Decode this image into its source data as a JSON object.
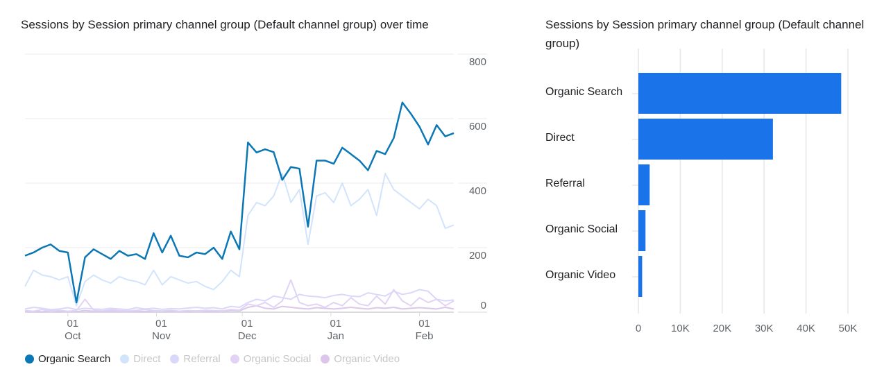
{
  "chart_data": [
    {
      "type": "line",
      "title": "Sessions by Session primary channel group (Default channel group) over time",
      "ylim": [
        0,
        800
      ],
      "y_ticks": [
        "0",
        "200",
        "400",
        "600",
        "800"
      ],
      "x_ticks": [
        {
          "day": "01",
          "month": "Oct",
          "date": "Oct 1"
        },
        {
          "day": "01",
          "month": "Nov",
          "date": "Nov 1"
        },
        {
          "day": "01",
          "month": "Dec",
          "date": "Dec 1"
        },
        {
          "day": "01",
          "month": "Jan",
          "date": "Jan 1"
        },
        {
          "day": "01",
          "month": "Feb",
          "date": "Feb 1"
        }
      ],
      "x_range": [
        "Sep 16",
        "Feb 13"
      ],
      "grid": true,
      "legend_position": "bottom",
      "x": [
        "Sep 16",
        "Sep 19",
        "Sep 22",
        "Sep 25",
        "Sep 28",
        "Oct 1",
        "Oct 4",
        "Oct 7",
        "Oct 10",
        "Oct 13",
        "Oct 16",
        "Oct 19",
        "Oct 22",
        "Oct 25",
        "Oct 28",
        "Oct 31",
        "Nov 3",
        "Nov 6",
        "Nov 9",
        "Nov 12",
        "Nov 15",
        "Nov 18",
        "Nov 21",
        "Nov 24",
        "Nov 27",
        "Nov 30",
        "Dec 3",
        "Dec 6",
        "Dec 9",
        "Dec 12",
        "Dec 15",
        "Dec 18",
        "Dec 21",
        "Dec 24",
        "Dec 27",
        "Dec 30",
        "Jan 2",
        "Jan 5",
        "Jan 8",
        "Jan 11",
        "Jan 14",
        "Jan 17",
        "Jan 20",
        "Jan 23",
        "Jan 26",
        "Jan 29",
        "Feb 1",
        "Feb 4",
        "Feb 7",
        "Feb 10",
        "Feb 13"
      ],
      "series": [
        {
          "name": "Organic Search",
          "color": "#0b77b5",
          "active": true,
          "values": [
            175,
            185,
            200,
            210,
            190,
            185,
            30,
            170,
            195,
            180,
            165,
            190,
            175,
            180,
            165,
            245,
            185,
            237,
            175,
            170,
            185,
            180,
            200,
            165,
            250,
            195,
            526,
            495,
            505,
            496,
            410,
            450,
            445,
            265,
            470,
            470,
            460,
            510,
            490,
            470,
            440,
            500,
            490,
            540,
            650,
            615,
            575,
            520,
            580,
            545,
            555
          ]
        },
        {
          "name": "Direct",
          "color": "#d2e3fc",
          "active": false,
          "values": [
            80,
            130,
            115,
            110,
            100,
            110,
            20,
            95,
            115,
            100,
            90,
            110,
            100,
            95,
            85,
            130,
            85,
            110,
            100,
            90,
            95,
            80,
            70,
            95,
            130,
            110,
            300,
            340,
            330,
            360,
            430,
            340,
            380,
            210,
            360,
            370,
            340,
            400,
            330,
            350,
            380,
            300,
            430,
            380,
            360,
            340,
            320,
            350,
            330,
            260,
            270
          ]
        },
        {
          "name": "Referral",
          "color": "#d9d8fb",
          "active": false,
          "values": [
            10,
            15,
            12,
            8,
            10,
            14,
            8,
            12,
            10,
            9,
            12,
            10,
            8,
            14,
            10,
            12,
            9,
            11,
            10,
            13,
            15,
            12,
            14,
            10,
            18,
            15,
            30,
            40,
            35,
            50,
            45,
            40,
            55,
            50,
            48,
            45,
            52,
            55,
            50,
            48,
            60,
            55,
            50,
            65,
            55,
            60,
            70,
            65,
            40,
            35,
            38
          ]
        },
        {
          "name": "Organic Social",
          "color": "#e2d3f5",
          "active": false,
          "values": [
            5,
            3,
            8,
            4,
            6,
            3,
            5,
            40,
            6,
            4,
            8,
            5,
            4,
            6,
            8,
            5,
            4,
            6,
            3,
            5,
            4,
            6,
            5,
            4,
            8,
            6,
            25,
            20,
            30,
            15,
            35,
            100,
            30,
            20,
            25,
            15,
            30,
            20,
            45,
            25,
            20,
            50,
            25,
            70,
            35,
            20,
            45,
            30,
            40,
            20,
            35
          ]
        },
        {
          "name": "Organic Video",
          "color": "#dcc6ec",
          "active": false,
          "values": [
            2,
            3,
            1,
            4,
            2,
            3,
            2,
            5,
            3,
            2,
            4,
            3,
            2,
            3,
            2,
            4,
            3,
            2,
            3,
            2,
            4,
            3,
            2,
            3,
            5,
            4,
            15,
            20,
            12,
            10,
            18,
            15,
            12,
            10,
            14,
            12,
            10,
            12,
            15,
            12,
            10,
            14,
            12,
            15,
            10,
            12,
            14,
            12,
            10,
            15,
            10
          ]
        }
      ]
    },
    {
      "type": "bar",
      "orientation": "horizontal",
      "title": "Sessions by Session primary channel group (Default channel group)",
      "categories": [
        "Organic Search",
        "Direct",
        "Referral",
        "Organic Social",
        "Organic Video"
      ],
      "values": [
        48400,
        32100,
        2700,
        1700,
        900
      ],
      "xlim": [
        0,
        50000
      ],
      "x_ticks": [
        "0",
        "10K",
        "20K",
        "30K",
        "40K",
        "50K"
      ],
      "grid": true,
      "color": "#1a73e8"
    }
  ]
}
